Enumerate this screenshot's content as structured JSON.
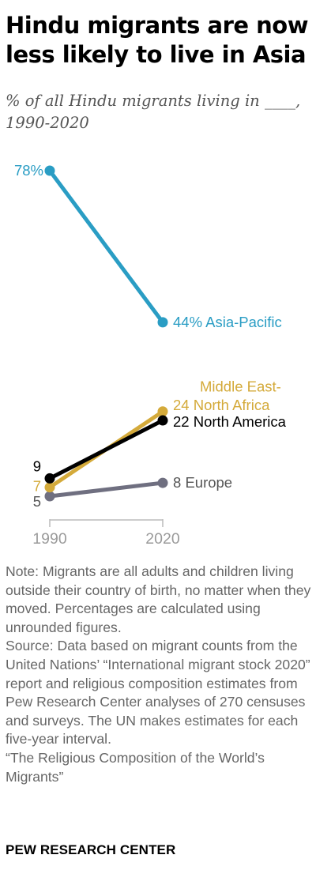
{
  "title": "Hindu migrants are now less likely to live in Asia",
  "subtitle": "% of all Hindu migrants living in ____, 1990-2020",
  "chart_data": {
    "type": "line",
    "x": [
      "1990",
      "2020"
    ],
    "series": [
      {
        "name": "Asia-Pacific",
        "values": [
          78,
          44
        ],
        "color": "#2a9dc4",
        "start_label": "78%",
        "end_value_label": "44%",
        "end_label": "Asia-Pacific"
      },
      {
        "name": "Middle East-North Africa",
        "values": [
          7,
          24
        ],
        "color": "#d4aa3a",
        "start_label": "7",
        "end_value_label": "24",
        "end_label_lines": [
          "Middle East-",
          "North Africa"
        ]
      },
      {
        "name": "North America",
        "values": [
          9,
          22
        ],
        "color": "#000000",
        "start_label": "9",
        "end_value_label": "22",
        "end_label": "North America"
      },
      {
        "name": "Europe",
        "values": [
          5,
          8
        ],
        "color": "#6f6f80",
        "start_label": "5",
        "end_value_label": "8",
        "end_label": "Europe"
      }
    ],
    "ylim": [
      5,
      78
    ],
    "grid": false,
    "legend": "direct-labels"
  },
  "note": {
    "note_text": "Note: Migrants are all adults and children living outside their country of birth, no matter when they moved. Percentages are calculated using unrounded figures.",
    "source_text": "Source: Data based on migrant counts from the United Nations’ “International migrant stock 2020” report and religious composition estimates from Pew Research Center analyses of 270 censuses and surveys. The UN makes estimates for each five-year interval.",
    "report_title": "“The Religious Composition of the World’s Migrants”"
  },
  "footer": "PEW RESEARCH CENTER"
}
